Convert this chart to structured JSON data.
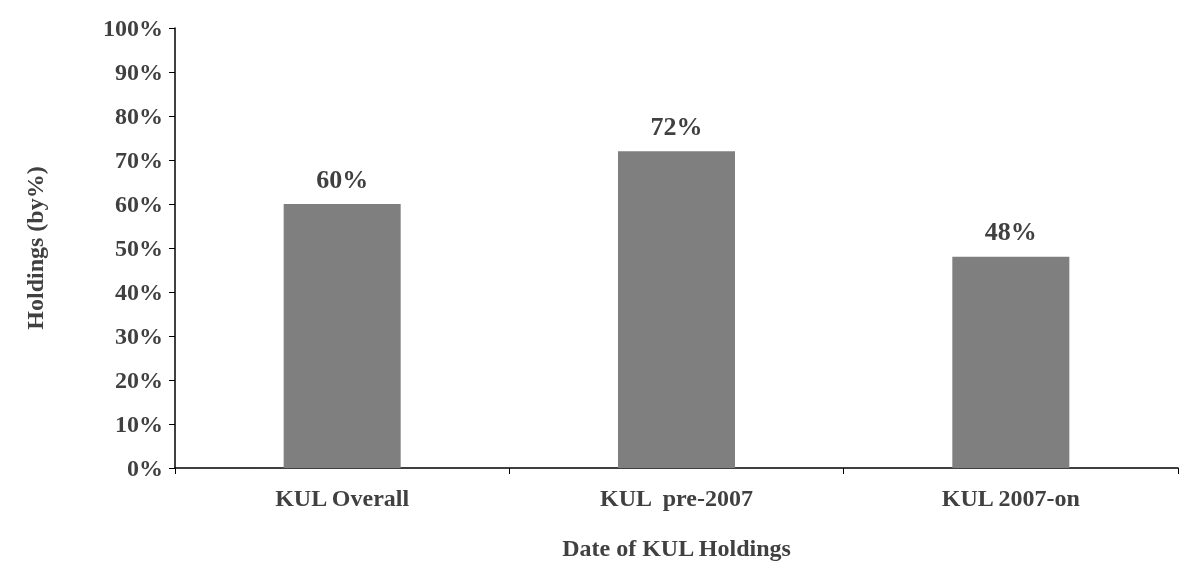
{
  "chart_data": {
    "type": "bar",
    "xlabel": "Date of KUL Holdings",
    "ylabel": "Holdings (by%)",
    "categories": [
      "KUL Overall",
      "KUL  pre-2007",
      "KUL 2007-on"
    ],
    "values": [
      60,
      72,
      48
    ],
    "color": "#7f7f7f",
    "value_labels": [
      "60%",
      "72%",
      "48%"
    ],
    "ylim": [
      0,
      100
    ],
    "yticks": [
      {
        "value": 0,
        "label": "0%"
      },
      {
        "value": 10,
        "label": "10%"
      },
      {
        "value": 20,
        "label": "20%"
      },
      {
        "value": 30,
        "label": "30%"
      },
      {
        "value": 40,
        "label": "40%"
      },
      {
        "value": 50,
        "label": "50%"
      },
      {
        "value": 60,
        "label": "60%"
      },
      {
        "value": 70,
        "label": "70%"
      },
      {
        "value": 80,
        "label": "80%"
      },
      {
        "value": 90,
        "label": "90%"
      },
      {
        "value": 100,
        "label": "100%"
      }
    ],
    "grid": false
  }
}
